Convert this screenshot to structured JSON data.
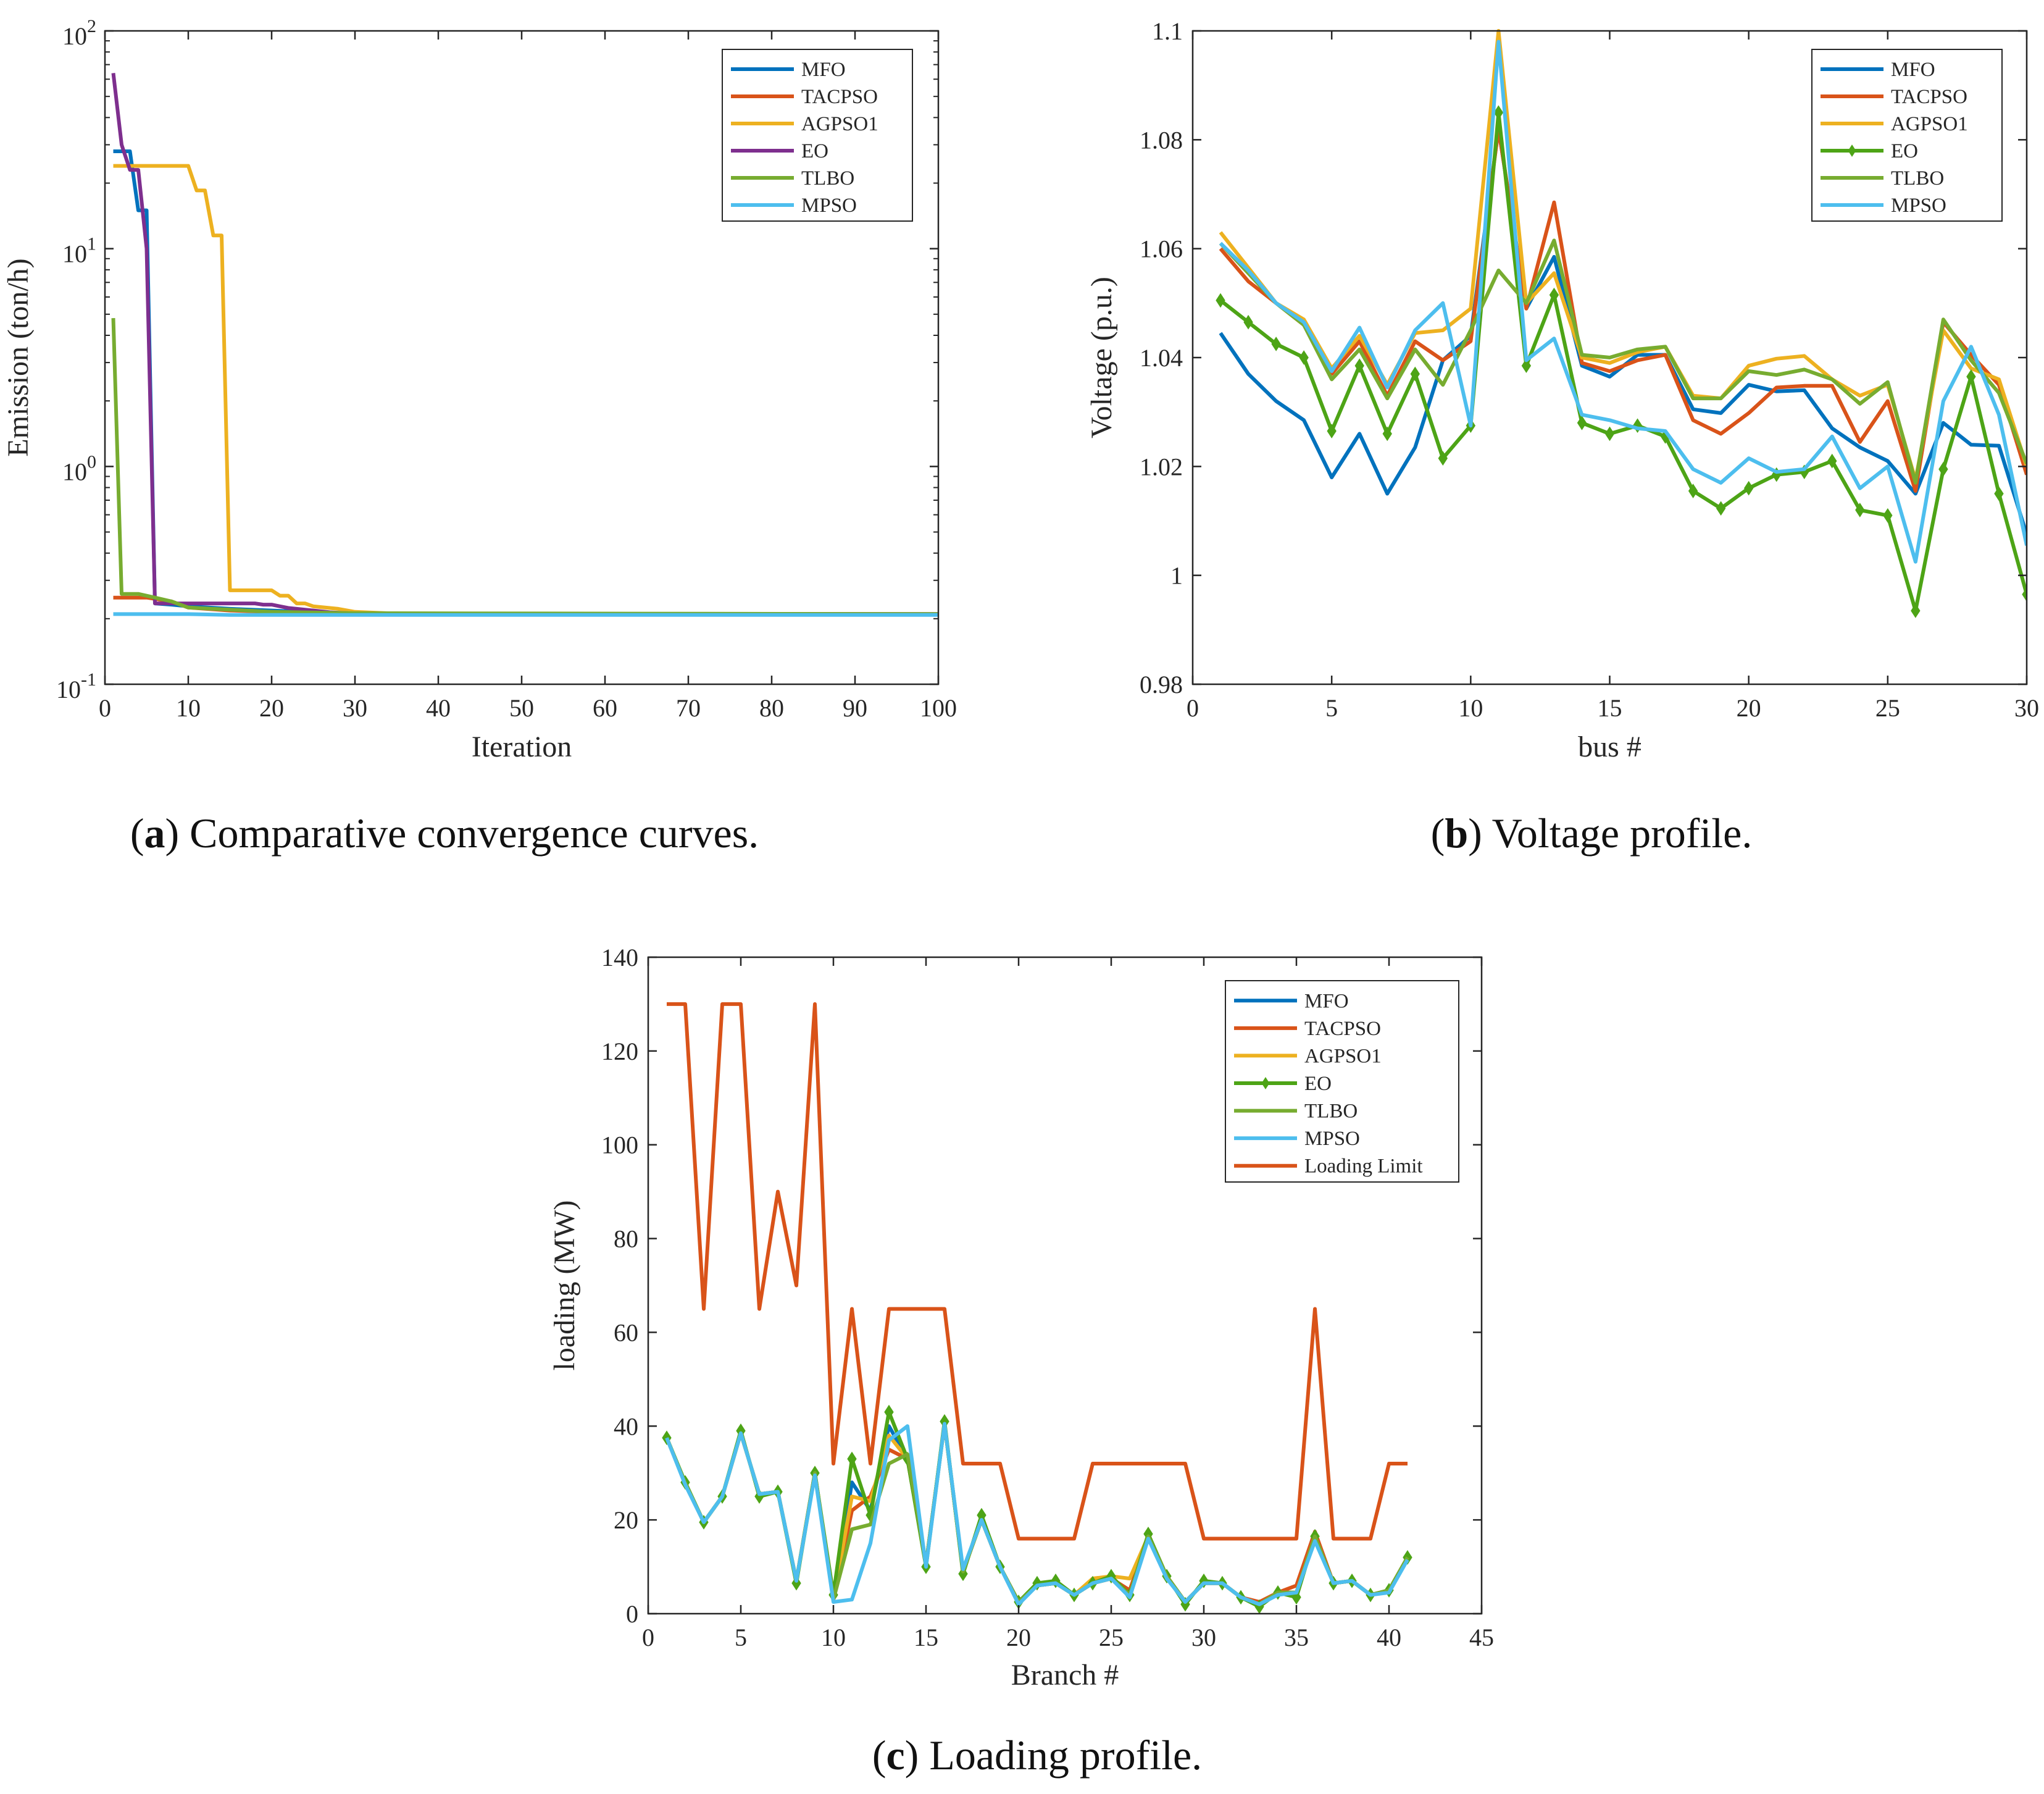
{
  "figure": {
    "captions": [
      {
        "label": "a",
        "text": "Comparative convergence curves."
      },
      {
        "label": "b",
        "text": "Voltage profile."
      },
      {
        "label": "c",
        "text": "Loading profile."
      }
    ]
  },
  "colors": {
    "MFO": "#0072BD",
    "TACPSO": "#D95319",
    "AGPSO1": "#EDB120",
    "EO_a": "#7E2F8E",
    "EO": "#4DA416",
    "TLBO": "#77AC30",
    "MPSO": "#4DBEEE",
    "Loading Limit": "#D95319"
  },
  "chart_data": [
    {
      "id": "a",
      "type": "line",
      "title": "",
      "xlabel": "Iteration",
      "ylabel": "Emission (ton/h)",
      "yscale": "log",
      "xlim": [
        0,
        100
      ],
      "ylim": [
        0.1,
        100
      ],
      "xticks": [
        0,
        10,
        20,
        30,
        40,
        50,
        60,
        70,
        80,
        90,
        100
      ],
      "yticks": [
        {
          "base": "10",
          "exp": "-1",
          "value": 0.1
        },
        {
          "base": "10",
          "exp": "0",
          "value": 1
        },
        {
          "base": "10",
          "exp": "1",
          "value": 10
        },
        {
          "base": "10",
          "exp": "2",
          "value": 100
        }
      ],
      "legend": "top-right",
      "series": [
        {
          "name": "MFO",
          "x": [
            1,
            2,
            3,
            4,
            5,
            6,
            8,
            10,
            15,
            20,
            25,
            30,
            35,
            100
          ],
          "values": [
            28,
            28,
            28,
            15,
            15,
            0.235,
            0.232,
            0.228,
            0.222,
            0.218,
            0.214,
            0.212,
            0.211,
            0.21
          ]
        },
        {
          "name": "TACPSO",
          "x": [
            1,
            5,
            8,
            10,
            15,
            20,
            25,
            30,
            100
          ],
          "values": [
            0.25,
            0.25,
            0.24,
            0.225,
            0.218,
            0.215,
            0.213,
            0.211,
            0.21
          ]
        },
        {
          "name": "AGPSO1",
          "x": [
            1,
            10,
            11,
            12,
            13,
            14,
            15,
            20,
            21,
            22,
            23,
            24,
            25,
            28,
            30,
            35,
            100
          ],
          "values": [
            24,
            24,
            18.5,
            18.5,
            11.5,
            11.5,
            0.27,
            0.27,
            0.255,
            0.255,
            0.235,
            0.235,
            0.228,
            0.222,
            0.215,
            0.211,
            0.21
          ]
        },
        {
          "name": "EO",
          "x": [
            1,
            2,
            3,
            4,
            5,
            6,
            7,
            8,
            9,
            10,
            11,
            12,
            13,
            14,
            15,
            16,
            17,
            18,
            19,
            20,
            21,
            22,
            23,
            24,
            25,
            26,
            27,
            28,
            29,
            30,
            31,
            32,
            33,
            34,
            35,
            36,
            37,
            38,
            39,
            40,
            41,
            42,
            43,
            44,
            45,
            46,
            47,
            48,
            49,
            50,
            51,
            52,
            53,
            54,
            55,
            56,
            57,
            58,
            59,
            60,
            61,
            62,
            63,
            64,
            65,
            66,
            67,
            68,
            69,
            70,
            71,
            72,
            73,
            74,
            75,
            76,
            77,
            78,
            79,
            80,
            81,
            82,
            83,
            84,
            85,
            86,
            87,
            88,
            89,
            90,
            91,
            92,
            93,
            94,
            95,
            96,
            97,
            98,
            99,
            100
          ],
          "values": [
            64,
            30,
            23,
            23,
            10,
            0.235,
            0.235,
            0.235,
            0.235,
            0.235,
            0.235,
            0.235,
            0.235,
            0.235,
            0.235,
            0.235,
            0.235,
            0.235,
            0.232,
            0.232,
            0.228,
            0.224,
            0.222,
            0.22,
            0.218,
            0.216,
            0.214,
            0.213,
            0.212,
            0.211,
            0.21,
            0.21,
            0.21,
            0.21,
            0.21,
            0.21,
            0.21,
            0.21,
            0.21,
            0.21,
            0.21,
            0.21,
            0.21,
            0.21,
            0.21,
            0.21,
            0.21,
            0.21,
            0.21,
            0.21,
            0.21,
            0.21,
            0.21,
            0.21,
            0.21,
            0.21,
            0.21,
            0.21,
            0.21,
            0.21,
            0.21,
            0.21,
            0.21,
            0.21,
            0.21,
            0.21,
            0.21,
            0.21,
            0.21,
            0.21,
            0.21,
            0.21,
            0.21,
            0.21,
            0.21,
            0.21,
            0.21,
            0.21,
            0.21,
            0.21,
            0.21,
            0.21,
            0.21,
            0.21,
            0.21,
            0.21,
            0.21,
            0.21,
            0.21,
            0.21,
            0.21,
            0.21,
            0.21,
            0.21,
            0.21,
            0.21,
            0.21,
            0.21,
            0.21,
            0.21
          ]
        },
        {
          "name": "TLBO",
          "x": [
            1,
            2,
            3,
            4,
            6,
            8,
            10,
            15,
            20,
            30,
            100
          ],
          "values": [
            4.8,
            0.26,
            0.26,
            0.26,
            0.25,
            0.24,
            0.225,
            0.22,
            0.215,
            0.212,
            0.21
          ]
        },
        {
          "name": "MPSO",
          "x": [
            1,
            10,
            15,
            100
          ],
          "values": [
            0.21,
            0.21,
            0.208,
            0.208
          ]
        }
      ]
    },
    {
      "id": "b",
      "type": "line",
      "title": "",
      "xlabel": "bus #",
      "ylabel": "Voltage (p.u.)",
      "xlim": [
        0,
        30
      ],
      "ylim": [
        0.98,
        1.1
      ],
      "xticks": [
        0,
        5,
        10,
        15,
        20,
        25,
        30
      ],
      "yticks": [
        0.98,
        1,
        1.02,
        1.04,
        1.06,
        1.08,
        1.1
      ],
      "ytick_labels": [
        "0.98",
        "1",
        "1.02",
        "1.04",
        "1.06",
        "1.08",
        "1.1"
      ],
      "legend": "top-right",
      "x": [
        1,
        2,
        3,
        4,
        5,
        6,
        7,
        8,
        9,
        10,
        11,
        12,
        13,
        14,
        15,
        16,
        17,
        18,
        19,
        20,
        21,
        22,
        23,
        24,
        25,
        26,
        27,
        28,
        29,
        30
      ],
      "series": [
        {
          "name": "MFO",
          "values": [
            1.0445,
            1.037,
            1.032,
            1.0285,
            1.018,
            1.026,
            1.015,
            1.0235,
            1.0395,
            1.044,
            1.082,
            1.049,
            1.0585,
            1.0385,
            1.0365,
            1.0405,
            1.0405,
            1.0305,
            1.0298,
            1.035,
            1.0338,
            1.034,
            1.027,
            1.0235,
            1.021,
            1.015,
            1.028,
            1.024,
            1.0238,
            1.0075
          ]
        },
        {
          "name": "TACPSO",
          "values": [
            1.06,
            1.054,
            1.05,
            1.046,
            1.037,
            1.043,
            1.033,
            1.043,
            1.0395,
            1.043,
            1.082,
            1.049,
            1.0685,
            1.039,
            1.0375,
            1.0395,
            1.0405,
            1.0285,
            1.026,
            1.0298,
            1.0345,
            1.0348,
            1.0348,
            1.0245,
            1.032,
            1.0155,
            1.0465,
            1.0405,
            1.035,
            1.0185
          ]
        },
        {
          "name": "AGPSO1",
          "values": [
            1.063,
            1.0565,
            1.05,
            1.047,
            1.038,
            1.044,
            1.035,
            1.0445,
            1.045,
            1.049,
            1.1,
            1.05,
            1.0555,
            1.04,
            1.039,
            1.041,
            1.042,
            1.033,
            1.0325,
            1.0385,
            1.0398,
            1.0403,
            1.036,
            1.033,
            1.035,
            1.0175,
            1.045,
            1.038,
            1.036,
            1.02
          ]
        },
        {
          "name": "EO",
          "marker": "diamond",
          "values": [
            1.0505,
            1.0465,
            1.0425,
            1.04,
            1.0265,
            1.0385,
            1.026,
            1.037,
            1.0215,
            1.0275,
            1.085,
            1.0385,
            1.0515,
            1.028,
            1.026,
            1.0275,
            1.0255,
            1.0155,
            1.0123,
            1.016,
            1.0185,
            1.019,
            1.021,
            1.012,
            1.011,
            0.9935,
            1.0195,
            1.0365,
            1.015,
            0.9965
          ]
        },
        {
          "name": "TLBO",
          "values": [
            1.061,
            1.0555,
            1.05,
            1.046,
            1.036,
            1.0415,
            1.0325,
            1.0415,
            1.035,
            1.045,
            1.056,
            1.05,
            1.0615,
            1.0405,
            1.04,
            1.0415,
            1.042,
            1.0325,
            1.0325,
            1.0375,
            1.0368,
            1.0378,
            1.036,
            1.0315,
            1.0355,
            1.017,
            1.047,
            1.0395,
            1.0335,
            1.0205
          ]
        },
        {
          "name": "MPSO",
          "values": [
            1.061,
            1.056,
            1.05,
            1.0465,
            1.0375,
            1.0455,
            1.0345,
            1.045,
            1.05,
            1.0275,
            1.098,
            1.0395,
            1.0435,
            1.0295,
            1.0285,
            1.027,
            1.0265,
            1.0195,
            1.017,
            1.0215,
            1.019,
            1.0195,
            1.0255,
            1.016,
            1.02,
            1.0025,
            1.032,
            1.042,
            1.0295,
            1.0055
          ]
        }
      ]
    },
    {
      "id": "c",
      "type": "line",
      "title": "",
      "xlabel": "Branch #",
      "ylabel": "loading (MW)",
      "xlim": [
        0,
        45
      ],
      "ylim": [
        0,
        140
      ],
      "xticks": [
        0,
        5,
        10,
        15,
        20,
        25,
        30,
        35,
        40,
        45
      ],
      "yticks": [
        0,
        20,
        40,
        60,
        80,
        100,
        120,
        140
      ],
      "legend": "top-right",
      "x": [
        1,
        2,
        3,
        4,
        5,
        6,
        7,
        8,
        9,
        10,
        11,
        12,
        13,
        14,
        15,
        16,
        17,
        18,
        19,
        20,
        21,
        22,
        23,
        24,
        25,
        26,
        27,
        28,
        29,
        30,
        31,
        32,
        33,
        34,
        35,
        36,
        37,
        38,
        39,
        40,
        41
      ],
      "series": [
        {
          "name": "MFO",
          "values": [
            37.5,
            27.8,
            19.5,
            25,
            38.5,
            25.5,
            26,
            7,
            30,
            3,
            28,
            22,
            40,
            33,
            10.5,
            40.5,
            9,
            20,
            10,
            2.5,
            6,
            6.5,
            4,
            6.5,
            7.5,
            4,
            16.5,
            8,
            2.5,
            6.5,
            6.5,
            3.5,
            2,
            4.5,
            4.5,
            16.5,
            6.5,
            7,
            4,
            5,
            12
          ]
        },
        {
          "name": "TACPSO",
          "values": [
            37.5,
            27.8,
            19.5,
            25,
            38.5,
            25.5,
            26,
            7,
            30,
            3,
            22,
            25,
            35,
            33,
            10.5,
            40.5,
            9,
            20,
            10,
            2.5,
            6,
            6.5,
            4,
            6.5,
            7.5,
            5,
            16.5,
            8,
            2.5,
            6.5,
            6.5,
            3.5,
            2.5,
            4.5,
            6,
            17.5,
            6.5,
            7,
            4,
            5,
            12
          ]
        },
        {
          "name": "AGPSO1",
          "values": [
            37.5,
            27.8,
            19.5,
            25,
            38.5,
            25.5,
            26,
            7,
            30,
            3,
            25,
            24,
            38,
            33,
            10.5,
            40.5,
            9,
            20,
            10,
            2.5,
            6,
            6.5,
            4,
            7.5,
            8,
            7.5,
            16.5,
            8,
            2.5,
            6.5,
            6.5,
            3.5,
            2,
            4.5,
            4.5,
            16.5,
            6.5,
            7,
            4,
            5,
            12
          ]
        },
        {
          "name": "EO",
          "marker": "diamond",
          "values": [
            37.5,
            28,
            19.5,
            25,
            39,
            25,
            26,
            6.5,
            30,
            4,
            33,
            21,
            43,
            33,
            10,
            41,
            8.5,
            21,
            10,
            2.5,
            6.5,
            7,
            4,
            6.5,
            8,
            4,
            17,
            8,
            2,
            7,
            6.5,
            3.5,
            1.5,
            4.5,
            3.5,
            16.5,
            6.5,
            7,
            4,
            5,
            12
          ]
        },
        {
          "name": "TLBO",
          "values": [
            37.5,
            27.8,
            19.5,
            25,
            38.5,
            25.5,
            26,
            7,
            30,
            3,
            18,
            19,
            32,
            34,
            10.5,
            40.5,
            9,
            20,
            10,
            2.5,
            6,
            6.5,
            4,
            6.5,
            7.5,
            4,
            16.5,
            8,
            2.5,
            6.5,
            6.5,
            3.5,
            2,
            4.5,
            4.5,
            16.5,
            6.5,
            7,
            4,
            5,
            12
          ]
        },
        {
          "name": "MPSO",
          "values": [
            37.5,
            27.5,
            19.5,
            25,
            38.5,
            25.5,
            26,
            7,
            29.5,
            2.5,
            3,
            15,
            37,
            40,
            10,
            40.5,
            9.5,
            20,
            10,
            2,
            6,
            6.5,
            4,
            6.5,
            7.5,
            3.5,
            16,
            7.5,
            2.5,
            6.5,
            6.5,
            3.5,
            2,
            4,
            4.5,
            15.5,
            6.5,
            7,
            4,
            4.5,
            11.5
          ]
        },
        {
          "name": "Loading Limit",
          "values": [
            130,
            130,
            65,
            130,
            130,
            65,
            90,
            70,
            130,
            32,
            65,
            32,
            65,
            65,
            65,
            65,
            32,
            32,
            32,
            16,
            16,
            16,
            16,
            32,
            32,
            32,
            32,
            32,
            32,
            16,
            16,
            16,
            16,
            16,
            16,
            65,
            16,
            16,
            16,
            32,
            32
          ]
        }
      ]
    }
  ]
}
